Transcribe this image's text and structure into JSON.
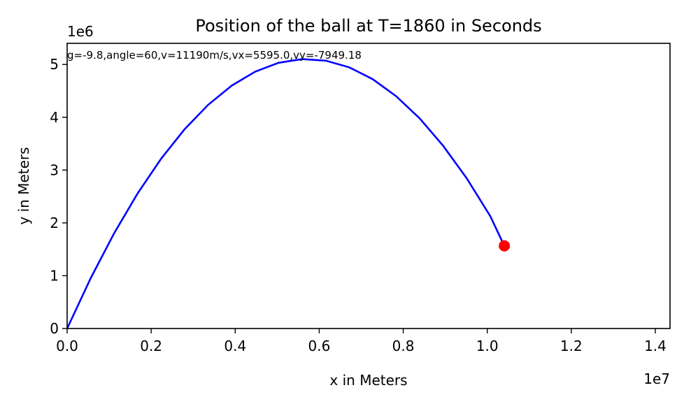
{
  "chart_data": {
    "type": "line",
    "title": "Position of the ball at T=1860 in Seconds",
    "xlabel": "x in Meters",
    "ylabel": "y in Meters",
    "x_offset_label": "1e7",
    "y_offset_label": "1e6",
    "annotation": "g=-9.8,angle=60,v=11190m/s,vx=5595.0,vy=-7949.18",
    "xlim": [
      0,
      14350000
    ],
    "ylim": [
      0,
      5400000
    ],
    "grid": false,
    "legend": "none",
    "xticks": [
      0.0,
      0.2,
      0.4,
      0.6,
      0.8,
      1.0,
      1.2,
      1.4
    ],
    "xtick_labels": [
      "0.0",
      "0.2",
      "0.4",
      "0.6",
      "0.8",
      "1.0",
      "1.2",
      "1.4"
    ],
    "yticks": [
      0,
      1,
      2,
      3,
      4,
      5
    ],
    "ytick_labels": [
      "0",
      "1",
      "2",
      "3",
      "4",
      "5"
    ],
    "series": [
      {
        "color": "#0000ff",
        "points": [
          [
            0,
            0
          ],
          [
            559500,
            951000
          ],
          [
            1119000,
            1804000
          ],
          [
            1678500,
            2559000
          ],
          [
            2238000,
            3216000
          ],
          [
            2797500,
            3775000
          ],
          [
            3357000,
            4236000
          ],
          [
            3916500,
            4599000
          ],
          [
            4476000,
            4864000
          ],
          [
            5035500,
            5032000
          ],
          [
            5595000,
            5101000
          ],
          [
            6154500,
            5072000
          ],
          [
            6714000,
            4946000
          ],
          [
            7273500,
            4721000
          ],
          [
            7833000,
            4398000
          ],
          [
            8392500,
            3978000
          ],
          [
            8952000,
            3459000
          ],
          [
            9511500,
            2843000
          ],
          [
            10071000,
            2128000
          ],
          [
            10406700,
            1565000
          ]
        ]
      }
    ],
    "marker": {
      "x": 10406700,
      "y": 1565000,
      "color": "#ff0000"
    }
  }
}
